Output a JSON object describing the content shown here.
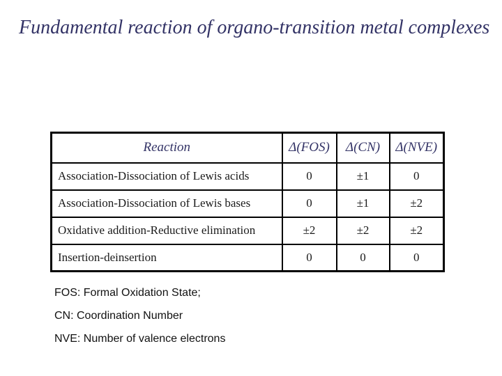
{
  "slide": {
    "title": "Fundamental reaction of organo-transition metal complexes"
  },
  "table": {
    "headers": [
      "Reaction",
      "Δ(FOS)",
      "Δ(CN)",
      "Δ(NVE)"
    ],
    "rows": [
      {
        "reaction": "Association-Dissociation of Lewis acids",
        "d_fos": "0",
        "d_cn": "±1",
        "d_nve": "0"
      },
      {
        "reaction": "Association-Dissociation of Lewis bases",
        "d_fos": "0",
        "d_cn": "±1",
        "d_nve": "±2"
      },
      {
        "reaction": "Oxidative addition-Reductive elimination",
        "d_fos": "±2",
        "d_cn": "±2",
        "d_nve": "±2"
      },
      {
        "reaction": "Insertion-deinsertion",
        "d_fos": "0",
        "d_cn": "0",
        "d_nve": "0"
      }
    ]
  },
  "footnotes": [
    "FOS: Formal Oxidation State;",
    "CN: Coordination Number",
    "NVE: Number of valence electrons"
  ],
  "colors": {
    "title_navy": "#333366",
    "body_text": "#1a1a1a",
    "table_border": "#000000",
    "background": "#ffffff"
  }
}
